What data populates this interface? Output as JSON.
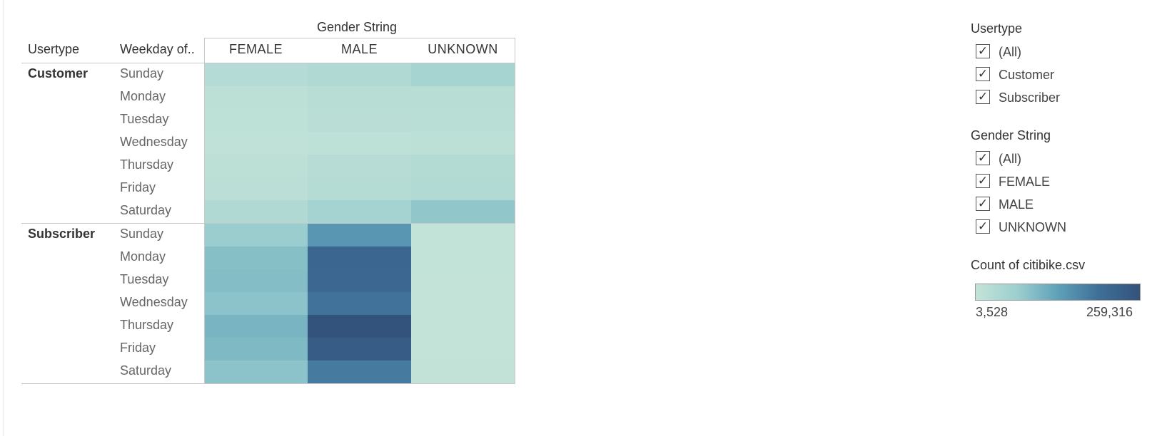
{
  "chart_data": {
    "type": "heatmap",
    "column_title": "Gender String",
    "row_headers": [
      "Usertype",
      "Weekday of.."
    ],
    "columns": [
      "FEMALE",
      "MALE",
      "UNKNOWN"
    ],
    "groups": [
      {
        "usertype": "Customer",
        "days": [
          "Sunday",
          "Monday",
          "Tuesday",
          "Wednesday",
          "Thursday",
          "Friday",
          "Saturday"
        ],
        "values": [
          [
            28000,
            34000,
            52000
          ],
          [
            15000,
            22000,
            24000
          ],
          [
            13000,
            19000,
            20000
          ],
          [
            10000,
            14000,
            15000
          ],
          [
            15000,
            26000,
            30000
          ],
          [
            17000,
            29000,
            33000
          ],
          [
            36000,
            55000,
            80000
          ]
        ]
      },
      {
        "usertype": "Subscriber",
        "days": [
          "Sunday",
          "Monday",
          "Tuesday",
          "Wednesday",
          "Thursday",
          "Friday",
          "Saturday"
        ],
        "values": [
          [
            70000,
            145000,
            5000
          ],
          [
            90000,
            215000,
            4500
          ],
          [
            92000,
            212000,
            4000
          ],
          [
            85000,
            190000,
            3800
          ],
          [
            105000,
            259316,
            3528
          ],
          [
            98000,
            235000,
            4200
          ],
          [
            85000,
            180000,
            5500
          ]
        ]
      }
    ],
    "color_scale": {
      "title": "Count of citibike.csv",
      "min": 3528,
      "max": 259316,
      "min_label": "3,528",
      "max_label": "259,316",
      "colors": [
        "#c3e3d8",
        "#9dcfcf",
        "#5fa1b9",
        "#3e6f97",
        "#33527c"
      ]
    }
  },
  "filters": [
    {
      "title": "Usertype",
      "items": [
        "(All)",
        "Customer",
        "Subscriber"
      ]
    },
    {
      "title": "Gender String",
      "items": [
        "(All)",
        "FEMALE",
        "MALE",
        "UNKNOWN"
      ]
    }
  ],
  "checkmark": "✓"
}
